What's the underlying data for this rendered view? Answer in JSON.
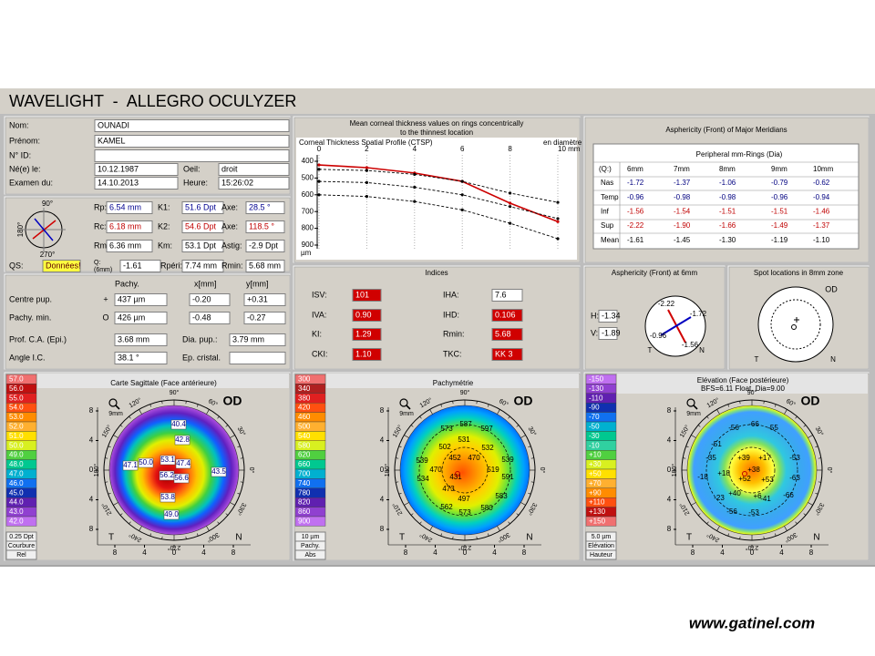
{
  "header": {
    "title": "WAVELIGHT  -  ALLEGRO OCULYZER"
  },
  "patient": {
    "nom": {
      "label": "Nom:",
      "value": "OUNADI"
    },
    "prenom": {
      "label": "Prénom:",
      "value": "KAMEL"
    },
    "id": {
      "label": "N° ID:"
    },
    "naissance": {
      "label": "Né(e) le:",
      "value": "10.12.1987"
    },
    "oeil": {
      "label": "Oeil:",
      "value": "droit"
    },
    "examen": {
      "label": "Examen du:",
      "value": "14.10.2013"
    },
    "heure": {
      "label": "Heure:",
      "value": "15:26:02"
    }
  },
  "kerato": {
    "compass": [
      "90°",
      "180°",
      "270°"
    ],
    "rp": {
      "label": "Rp:",
      "value": "6.54 mm"
    },
    "k1": {
      "label": "K1:",
      "value": "51.6 Dpt"
    },
    "axe1": {
      "label": "Axe:",
      "value": "28.5 °"
    },
    "rc": {
      "label": "Rc:",
      "value": "6.18 mm"
    },
    "k2": {
      "label": "K2:",
      "value": "54.6 Dpt"
    },
    "axe2": {
      "label": "Axe:",
      "value": "118.5 °"
    },
    "rm": {
      "label": "Rm:",
      "value": "6.36 mm"
    },
    "km": {
      "label": "Km:",
      "value": "53.1 Dpt"
    },
    "astig": {
      "label": "Astig:",
      "value": "-2.9 Dpt"
    },
    "qs": {
      "label": "QS:",
      "value": "Données!"
    },
    "q": {
      "label": [
        "Q:",
        "(6mm)"
      ],
      "value": "-1.61"
    },
    "rperi": {
      "label": "Rpéri:",
      "value": "7.74 mm"
    },
    "rmin": {
      "label": "Rmin:",
      "value": "5.68 mm"
    }
  },
  "pachy": {
    "headers": [
      "Pachy.",
      "x[mm]",
      "y[mm]"
    ],
    "rows": [
      {
        "label": "Centre pup.",
        "symbol": "+",
        "values": [
          "437 µm",
          "-0.20",
          "+0.31"
        ]
      },
      {
        "label": "Pachy. min.",
        "symbol": "O",
        "values": [
          "426 µm",
          "-0.48",
          "-0.27"
        ]
      }
    ],
    "prof": {
      "label": "Prof. C.A. (Epi.)",
      "value": "3.68 mm"
    },
    "dia": {
      "label": "Dia. pup.:",
      "value": "3.79 mm"
    },
    "angle": {
      "label": "Angle I.C.",
      "value": "38.1 °"
    },
    "cristal": {
      "label": "Ep. cristal."
    }
  },
  "chart_data": {
    "type": "line",
    "title": [
      "Mean corneal thickness values on rings concentrically",
      "to the thinnest location"
    ],
    "subtitle": "Corneal Thickness Spatial Profile (CTSP)",
    "x_label": "en diamètre",
    "y_label": "µm",
    "x": [
      0,
      2,
      4,
      6,
      8,
      10
    ],
    "xlim": [
      0,
      10
    ],
    "xticks": [
      0,
      2,
      4,
      6,
      8,
      {
        "value": 10,
        "label": "10 mm"
      }
    ],
    "ylim": [
      400,
      900
    ],
    "y_inverted": true,
    "yticks": [
      400,
      500,
      600,
      700,
      800,
      900
    ],
    "grid": true,
    "series": [
      {
        "color": "#cc0000",
        "values": [
          422,
          438,
          470,
          520,
          650,
          760
        ]
      },
      {
        "color": "#000000",
        "dashed": true,
        "values": [
          448,
          455,
          478,
          520,
          590,
          645
        ]
      },
      {
        "color": "#000000",
        "dashed": true,
        "values": [
          520,
          527,
          555,
          600,
          670,
          742
        ]
      },
      {
        "color": "#000000",
        "dashed": true,
        "values": [
          600,
          610,
          640,
          690,
          770,
          862
        ]
      }
    ]
  },
  "asph": {
    "title": "Asphericity (Front) of Major Meridians",
    "rings_title": "Peripheral mm-Rings (Dia)",
    "corner": "(Q:)",
    "columns": [
      "6mm",
      "7mm",
      "8mm",
      "9mm",
      "10mm"
    ],
    "rows": [
      {
        "label": "Nas",
        "color": "#000080",
        "values": [
          "-1.72",
          "-1.37",
          "-1.06",
          "-0.79",
          "-0.62"
        ]
      },
      {
        "label": "Temp",
        "color": "#000080",
        "values": [
          "-0.96",
          "-0.98",
          "-0.98",
          "-0.96",
          "-0.94"
        ]
      },
      {
        "label": "Inf",
        "color": "#c00000",
        "values": [
          "-1.56",
          "-1.54",
          "-1.51",
          "-1.51",
          "-1.46"
        ]
      },
      {
        "label": "Sup",
        "color": "#c00000",
        "values": [
          "-2.22",
          "-1.90",
          "-1.66",
          "-1.49",
          "-1.37"
        ]
      },
      {
        "label": "Mean",
        "color": "#000000",
        "values": [
          "-1.61",
          "-1.45",
          "-1.30",
          "-1.19",
          "-1.10"
        ]
      }
    ]
  },
  "indices": {
    "title": "Indices",
    "items": [
      {
        "label": "ISV:",
        "value": "101",
        "flag": true
      },
      {
        "label": "IVA:",
        "value": "0.90",
        "flag": true
      },
      {
        "label": "KI:",
        "value": "1.29",
        "flag": true
      },
      {
        "label": "CKI:",
        "value": "1.10",
        "flag": true
      },
      {
        "label": "IHA:",
        "value": "7.6",
        "flag": false
      },
      {
        "label": "IHD:",
        "value": "0.106",
        "flag": true
      },
      {
        "label": "Rmin:",
        "value": "5.68",
        "flag": true
      },
      {
        "label": "TKC:",
        "value": "KK 3",
        "flag": true
      }
    ]
  },
  "asph6": {
    "title": "Asphericity (Front) at 6mm",
    "h": {
      "label": "H:",
      "value": "-1.34"
    },
    "v": {
      "label": "V:",
      "value": "-1.89"
    },
    "labels": [
      "-2.22",
      "-1.72",
      "-0.96",
      "-1.56"
    ],
    "orientation": [
      "T",
      "N"
    ]
  },
  "spot": {
    "title": "Spot locations in 8mm zone",
    "eye": "OD",
    "orientation": [
      "T",
      "N"
    ]
  },
  "maps": [
    {
      "title": [
        "Carte Sagittale (Face antérieure)"
      ],
      "eye": "OD",
      "zone": "9mm",
      "ticks": [
        "8",
        "4",
        "0",
        "4",
        "8"
      ],
      "orientation": [
        "T",
        "N"
      ],
      "angles": [
        "0°",
        "30°",
        "60°",
        "90°",
        "120°",
        "150°",
        "180°",
        "210°",
        "240°",
        "270°",
        "300°",
        "330°"
      ],
      "scale": {
        "labels": [
          "57.0",
          "56.0",
          "55.0",
          "54.0",
          "53.0",
          "52.0",
          "51.0",
          "50.0",
          "49.0",
          "48.0",
          "47.0",
          "46.0",
          "45.0",
          "44.0",
          "43.0",
          "42.0"
        ],
        "colors": [
          "#f07070",
          "#c01010",
          "#e02020",
          "#ff5010",
          "#ff8c00",
          "#ffb030",
          "#ffe000",
          "#d8f020",
          "#50d040",
          "#00c890",
          "#00b0d0",
          "#1070f0",
          "#1030b0",
          "#6020b0",
          "#9040d0",
          "#c070f0"
        ],
        "step": "0.25 Dpt",
        "lines": [
          "Courbure",
          "Rel"
        ]
      },
      "values": [
        "40.4",
        "42.8",
        "47.1",
        "50.0",
        "53.1",
        "47.4",
        "56.2",
        "56.6",
        "43.5",
        "53.8",
        "49.0"
      ]
    },
    {
      "title": [
        "Pachymétrie"
      ],
      "eye": "OD",
      "zone": "9mm",
      "ticks": [
        "8",
        "4",
        "0",
        "4",
        "8"
      ],
      "orientation": [
        "T",
        "N"
      ],
      "angles": [
        "0°",
        "30°",
        "60°",
        "90°",
        "120°",
        "150°",
        "180°",
        "210°",
        "240°",
        "270°",
        "300°",
        "330°"
      ],
      "scale": {
        "labels": [
          "300",
          "340",
          "380",
          "420",
          "460",
          "500",
          "540",
          "580",
          "620",
          "660",
          "700",
          "740",
          "780",
          "820",
          "860",
          "900"
        ],
        "colors": [
          "#f07070",
          "#b02020",
          "#e02020",
          "#ff5010",
          "#ff8c00",
          "#ffb030",
          "#ffe000",
          "#d8f020",
          "#50d040",
          "#00c890",
          "#00b0d0",
          "#1070f0",
          "#1030b0",
          "#6020b0",
          "#9040d0",
          "#c070f0"
        ],
        "step": "10 µm",
        "lines": [
          "Pachy.",
          "Abs"
        ]
      },
      "values": [
        "587",
        "573",
        "597",
        "502",
        "531",
        "532",
        "539",
        "452",
        "470",
        "539",
        "470",
        "519",
        "534",
        "431",
        "591",
        "473",
        "583",
        "497",
        "562",
        "573",
        "580"
      ]
    },
    {
      "title": [
        "Elévation (Face postérieure)",
        "BFS=6.11 Float, Dia=9.00"
      ],
      "eye": "OD",
      "zone": "9mm",
      "ticks": [
        "8",
        "4",
        "0",
        "4",
        "8"
      ],
      "orientation": [
        "T",
        "N"
      ],
      "angles": [
        "0°",
        "30°",
        "60°",
        "90°",
        "120°",
        "150°",
        "180°",
        "210°",
        "240°",
        "270°",
        "300°",
        "330°"
      ],
      "scale": {
        "labels": [
          "-150",
          "-130",
          "-110",
          "-90",
          "-70",
          "-50",
          "-30",
          "-10",
          "+10",
          "+30",
          "+50",
          "+70",
          "+90",
          "+110",
          "+130",
          "+150"
        ],
        "colors": [
          "#c070f0",
          "#9040d0",
          "#6020b0",
          "#1030b0",
          "#1070f0",
          "#00b0d0",
          "#00c890",
          "#30d0a0",
          "#50d040",
          "#d8f020",
          "#ffe000",
          "#ffb030",
          "#ff8c00",
          "#ff5010",
          "#c01010",
          "#f07070"
        ],
        "step": "5.0 µm",
        "lines": [
          "Elévation",
          "Hauteur"
        ]
      },
      "values": [
        "-66",
        "-56",
        "-55",
        "-51",
        "-53",
        "-35",
        "+39",
        "+17",
        "-18",
        "+18",
        "+38",
        "+53",
        "+52",
        "-63",
        "-23",
        "+40",
        "-56",
        "+6",
        "-41",
        "-66",
        "-53"
      ]
    }
  ],
  "footer": "www.gatinel.com"
}
